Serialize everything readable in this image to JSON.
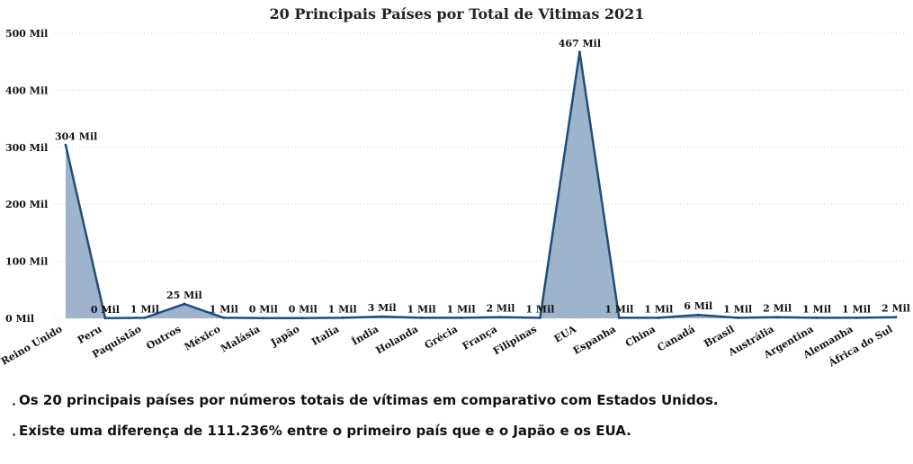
{
  "chart_data": {
    "type": "area",
    "title": "20 Principais Países por Total de Vitimas 2021",
    "categories": [
      "Reino Unido",
      "Peru",
      "Paquistão",
      "Outros",
      "México",
      "Malásia",
      "Japão",
      "Italia",
      "Índia",
      "Holanda",
      "Grécia",
      "França",
      "Filipinas",
      "EUA",
      "Espanha",
      "China",
      "Canadá",
      "Brasil",
      "Austrália",
      "Argentina",
      "Alemanha",
      "África do Sul"
    ],
    "values": [
      304,
      0.3,
      1,
      25,
      1,
      0.4,
      0.4,
      1,
      3,
      1,
      1,
      2,
      1,
      467,
      1,
      1,
      6,
      1,
      2,
      1,
      1,
      2
    ],
    "data_labels": [
      "304 Mil",
      "0 Mil",
      "1 Mil",
      "25 Mil",
      "1 Mil",
      "0 Mil",
      "0 Mil",
      "1 Mil",
      "3 Mil",
      "1 Mil",
      "1 Mil",
      "2 Mil",
      "1 Mil",
      "467 Mil",
      "1 Mil",
      "1 Mil",
      "6 Mil",
      "1 Mil",
      "2 Mil",
      "1 Mil",
      "1 Mil",
      "2 Mil"
    ],
    "ylim": [
      0,
      500
    ],
    "yticks": [
      0,
      100,
      200,
      300,
      400,
      500
    ],
    "ytick_labels": [
      "0 Mil",
      "100 Mil",
      "200 Mil",
      "300 Mil",
      "400 Mil",
      "500 Mil"
    ],
    "xlabel": "",
    "ylabel": "",
    "grid": true,
    "colors": {
      "fill": "#9eb3cc",
      "line": "#1f4e79"
    }
  },
  "notes": [
    "Os 20 principais países por números totais de vítimas em comparativo com Estados Unidos.",
    "Existe uma diferença de 111.236% entre o primeiro país que e o Japão e os EUA."
  ]
}
